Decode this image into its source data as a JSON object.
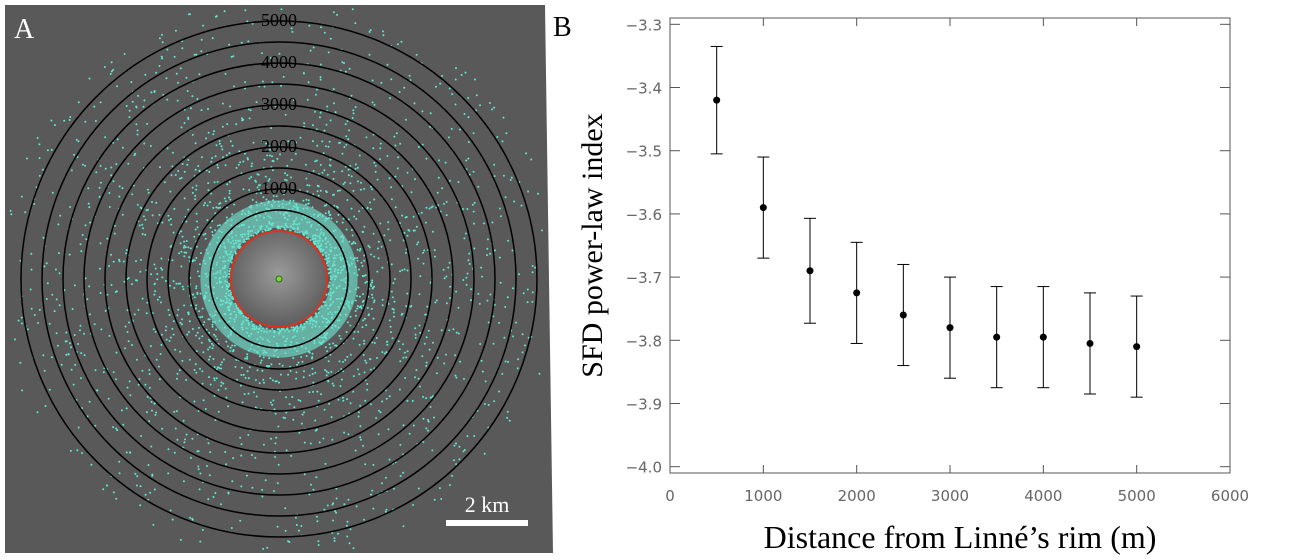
{
  "panel_a": {
    "label": "A",
    "ring_labels": [
      "1000",
      "2000",
      "3000",
      "4000",
      "5000"
    ],
    "scale_bar": "2 km"
  },
  "chart_data": {
    "type": "scatter",
    "panel_label": "B",
    "xlabel": "Distance from Linné’s rim (m)",
    "ylabel": "SFD power-law index",
    "x": [
      500,
      1000,
      1500,
      2000,
      2500,
      3000,
      3500,
      4000,
      4500,
      5000
    ],
    "values": [
      -3.42,
      -3.59,
      -3.69,
      -3.725,
      -3.76,
      -3.78,
      -3.795,
      -3.795,
      -3.805,
      -3.81
    ],
    "errors": [
      0.085,
      0.08,
      0.083,
      0.08,
      0.08,
      0.08,
      0.08,
      0.08,
      0.08,
      0.08
    ],
    "color": "#000000",
    "xlim": [
      0,
      6000
    ],
    "xticks": [
      0,
      1000,
      2000,
      3000,
      4000,
      5000,
      6000
    ],
    "ylim": [
      -4.01,
      -3.29
    ],
    "yticks": [
      {
        "value": -4.0,
        "label": "−4.0"
      },
      {
        "value": -3.9,
        "label": "−3.9"
      },
      {
        "value": -3.8,
        "label": "−3.8"
      },
      {
        "value": -3.7,
        "label": "−3.7"
      },
      {
        "value": -3.6,
        "label": "−3.6"
      },
      {
        "value": -3.5,
        "label": "−3.5"
      },
      {
        "value": -3.4,
        "label": "−3.4"
      },
      {
        "value": -3.3,
        "label": "−3.3"
      }
    ]
  }
}
